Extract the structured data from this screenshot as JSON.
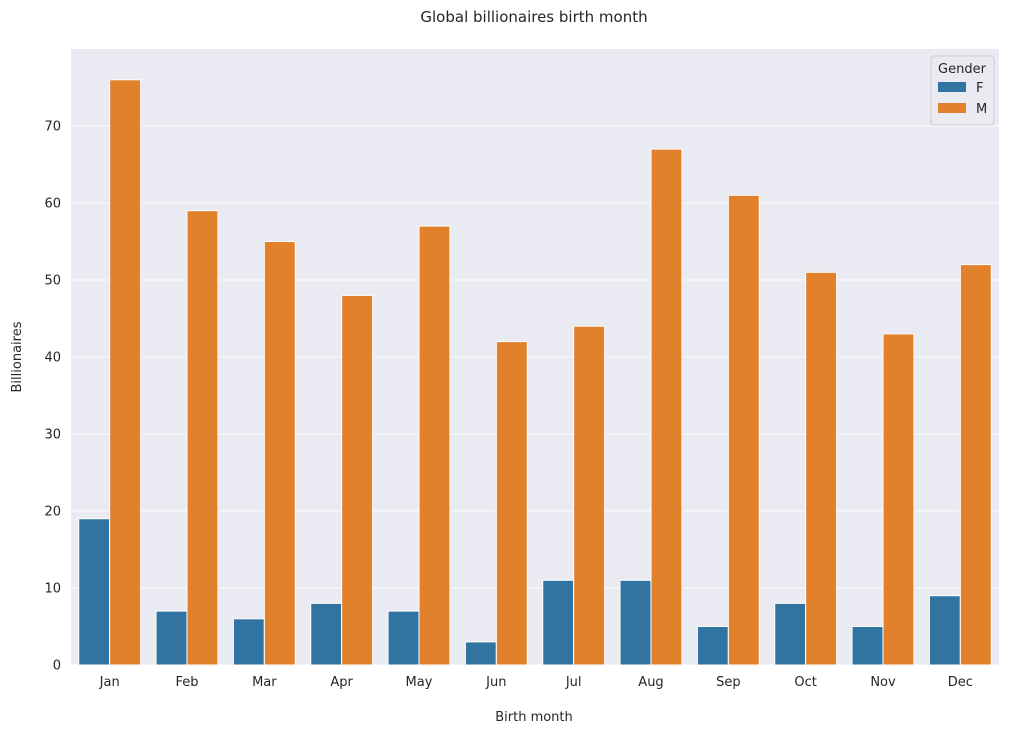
{
  "chart_data": {
    "type": "bar",
    "title": "Global billionaires birth month",
    "xlabel": "Birth month",
    "ylabel": "Billionaires",
    "categories": [
      "Jan",
      "Feb",
      "Mar",
      "Apr",
      "May",
      "Jun",
      "Jul",
      "Aug",
      "Sep",
      "Oct",
      "Nov",
      "Dec"
    ],
    "series": [
      {
        "name": "F",
        "color": "#3274a1",
        "values": [
          19,
          7,
          6,
          8,
          7,
          3,
          11,
          11,
          5,
          8,
          5,
          9
        ]
      },
      {
        "name": "M",
        "color": "#e1812c",
        "values": [
          76,
          59,
          55,
          48,
          57,
          42,
          44,
          67,
          61,
          51,
          43,
          52
        ]
      }
    ],
    "ylim": [
      0,
      80
    ],
    "yticks": [
      0,
      10,
      20,
      30,
      40,
      50,
      60,
      70
    ],
    "grid": true,
    "legend": {
      "title": "Gender",
      "position": "top-right"
    },
    "background": "#eaeaf2"
  }
}
